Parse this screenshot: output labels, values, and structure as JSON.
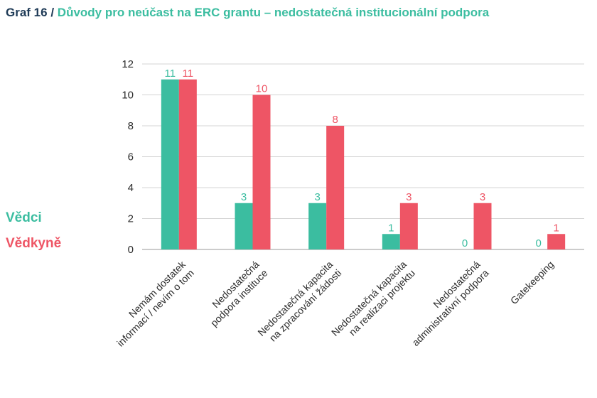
{
  "header": {
    "label": "Graf 16",
    "separator": "/",
    "title": "Důvody pro neúčast na ERC grantu – nedostatečná institucionální podpora"
  },
  "colors": {
    "title_label": "#1f3b57",
    "title_text": "#3bbda0",
    "series_vedci": "#3bbda0",
    "series_vedkyne": "#ee5565"
  },
  "chart_data": {
    "type": "bar",
    "title": "Důvody pro neúčast na ERC grantu – nedostatečná institucionální podpora",
    "xlabel": "",
    "ylabel": "",
    "ylim": [
      0,
      12
    ],
    "yticks": [
      0,
      2,
      4,
      6,
      8,
      10,
      12
    ],
    "grid": "horizontal",
    "legend_position": "left",
    "categories": [
      [
        "Nemám dostatek",
        "informací / nevím o tom"
      ],
      [
        "Nedostatečná",
        "podpora instituce"
      ],
      [
        "Nedostatečná kapacita",
        "na zpracování žádosti"
      ],
      [
        "Nedostatečná kapacita",
        "na realizaci projektu"
      ],
      [
        "Nedostatečná",
        "administrativní podpora"
      ],
      [
        "Gatekeeping"
      ]
    ],
    "series": [
      {
        "name": "Vědci",
        "color": "#3bbda0",
        "values": [
          11,
          3,
          3,
          1,
          0,
          0
        ]
      },
      {
        "name": "Vědkyně",
        "color": "#ee5565",
        "values": [
          11,
          10,
          8,
          3,
          3,
          1
        ]
      }
    ]
  }
}
